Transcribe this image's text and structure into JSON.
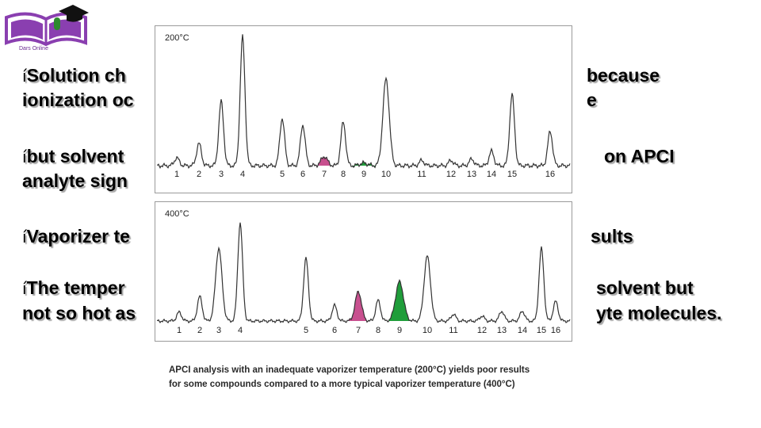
{
  "logo": {
    "text": "Dars Online",
    "brand_color": "#8a3fb0"
  },
  "bullets": [
    {
      "marker": "í",
      "line1": "Solution ch",
      "line1b": "because",
      "line2": "ionization oc",
      "line2b": "e"
    },
    {
      "marker": "í",
      "line1": "but solvent",
      "line1b": "on APCI",
      "line2": "analyte sign",
      "line2b": ""
    },
    {
      "marker": "í",
      "line1": "Vaporizer te",
      "line1b": "sults",
      "line2": "",
      "line2b": ""
    },
    {
      "marker": "í",
      "line1": "The temper",
      "line1b": "solvent but",
      "line2": "not so hot as",
      "line2b": "yte molecules."
    }
  ],
  "chart_data": [
    {
      "type": "line",
      "title": "200°C",
      "peak_labels": [
        "1",
        "2",
        "3",
        "4",
        "5",
        "6",
        "7",
        "8",
        "9",
        "10",
        "11",
        "12",
        "13",
        "14",
        "15",
        "16"
      ],
      "x_range": [
        0,
        1
      ],
      "highlight_colors": {
        "peak_7": "#c8508f",
        "peak_9": "#1f9d3a"
      }
    },
    {
      "type": "line",
      "title": "400°C",
      "peak_labels": [
        "1",
        "2",
        "3",
        "4",
        "5",
        "6",
        "7",
        "8",
        "9",
        "10",
        "11",
        "12",
        "13",
        "14",
        "15",
        "16"
      ],
      "x_range": [
        0,
        1
      ],
      "highlight_colors": {
        "peak_7": "#c8508f",
        "peak_9": "#1f9d3a"
      }
    }
  ],
  "caption": {
    "line1": "APCI analysis with an inadequate vaporizer temperature (200°C) yields poor results",
    "line2": "for some compounds compared to a more typical vaporizer temperature (400°C)"
  }
}
